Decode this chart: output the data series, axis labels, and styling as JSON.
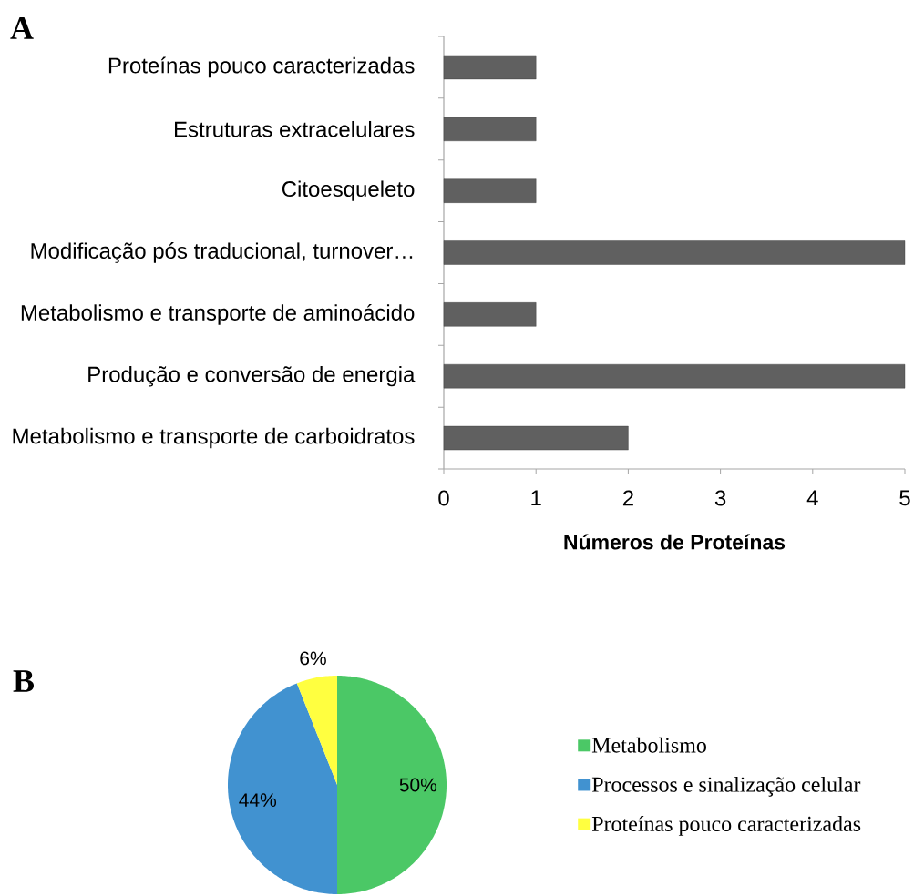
{
  "chart_data": [
    {
      "type": "bar",
      "orientation": "horizontal",
      "title": "A",
      "categories": [
        "Proteínas pouco caracterizadas",
        "Estruturas extracelulares",
        "Citoesqueleto",
        "Modificação pós traducional, turnover…",
        "Metabolismo e transporte de aminoácido",
        "Produção e conversão de energia",
        "Metabolismo e transporte de carboidratos"
      ],
      "values": [
        1,
        1,
        1,
        5,
        1,
        5,
        2
      ],
      "color": "#606060",
      "xlim": [
        0,
        5
      ],
      "xticks": [
        0,
        1,
        2,
        3,
        4,
        5
      ],
      "xlabel": "Números de Proteínas"
    },
    {
      "type": "pie",
      "title": "B",
      "categories": [
        "Metabolismo",
        "Processos e sinalização celular",
        "Proteínas pouco caracterizadas"
      ],
      "values": [
        50,
        44,
        6
      ],
      "colors": [
        "#4bc866",
        "#4192d0",
        "#ffff40"
      ],
      "value_labels": [
        "50%",
        "44%",
        "6%"
      ],
      "legend": "right"
    }
  ]
}
